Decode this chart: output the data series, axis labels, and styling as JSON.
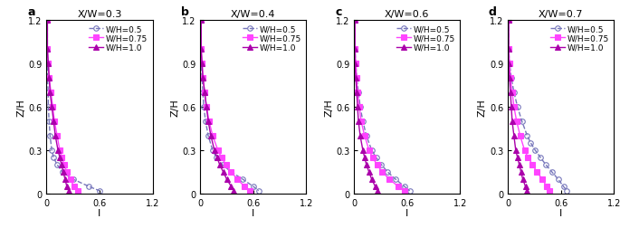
{
  "panels": [
    {
      "label": "a",
      "title": "X/W=0.3",
      "series": [
        {
          "name": "W/H=0.5",
          "color": "#7777bb",
          "marker": "o",
          "markersize": 4,
          "linestyle": "--",
          "fillstyle": "none",
          "z": [
            1.2,
            1.0,
            0.9,
            0.8,
            0.7,
            0.6,
            0.5,
            0.4,
            0.3,
            0.25,
            0.2,
            0.15,
            0.1,
            0.05,
            0.02
          ],
          "I": [
            0.01,
            0.01,
            0.01,
            0.01,
            0.02,
            0.02,
            0.03,
            0.04,
            0.06,
            0.08,
            0.12,
            0.18,
            0.3,
            0.48,
            0.6
          ]
        },
        {
          "name": "W/H=0.75",
          "color": "#ff44ff",
          "marker": "s",
          "markersize": 4,
          "linestyle": "-",
          "fillstyle": "full",
          "z": [
            1.2,
            1.0,
            0.9,
            0.8,
            0.7,
            0.6,
            0.5,
            0.4,
            0.3,
            0.25,
            0.2,
            0.15,
            0.1,
            0.05,
            0.02
          ],
          "I": [
            0.01,
            0.01,
            0.02,
            0.03,
            0.05,
            0.07,
            0.09,
            0.12,
            0.15,
            0.17,
            0.2,
            0.23,
            0.27,
            0.31,
            0.35
          ]
        },
        {
          "name": "W/H=1.0",
          "color": "#aa00aa",
          "marker": "^",
          "markersize": 4,
          "linestyle": "-",
          "fillstyle": "full",
          "z": [
            1.2,
            1.0,
            0.9,
            0.8,
            0.7,
            0.6,
            0.5,
            0.4,
            0.3,
            0.25,
            0.2,
            0.15,
            0.1,
            0.05,
            0.02
          ],
          "I": [
            0.01,
            0.01,
            0.02,
            0.03,
            0.04,
            0.06,
            0.08,
            0.1,
            0.13,
            0.15,
            0.17,
            0.19,
            0.21,
            0.23,
            0.25
          ]
        }
      ]
    },
    {
      "label": "b",
      "title": "X/W=0.4",
      "series": [
        {
          "name": "W/H=0.5",
          "color": "#7777bb",
          "marker": "o",
          "markersize": 4,
          "linestyle": "--",
          "fillstyle": "none",
          "z": [
            1.2,
            1.0,
            0.9,
            0.8,
            0.7,
            0.6,
            0.5,
            0.4,
            0.3,
            0.25,
            0.2,
            0.15,
            0.1,
            0.05,
            0.02
          ],
          "I": [
            0.01,
            0.01,
            0.01,
            0.02,
            0.03,
            0.04,
            0.06,
            0.09,
            0.14,
            0.18,
            0.25,
            0.35,
            0.48,
            0.6,
            0.66
          ]
        },
        {
          "name": "W/H=0.75",
          "color": "#ff44ff",
          "marker": "s",
          "markersize": 4,
          "linestyle": "-",
          "fillstyle": "full",
          "z": [
            1.2,
            1.0,
            0.9,
            0.8,
            0.7,
            0.6,
            0.5,
            0.4,
            0.3,
            0.25,
            0.2,
            0.15,
            0.1,
            0.05,
            0.02
          ],
          "I": [
            0.01,
            0.01,
            0.02,
            0.03,
            0.05,
            0.07,
            0.1,
            0.14,
            0.2,
            0.24,
            0.29,
            0.35,
            0.42,
            0.5,
            0.56
          ]
        },
        {
          "name": "W/H=1.0",
          "color": "#aa00aa",
          "marker": "^",
          "markersize": 4,
          "linestyle": "-",
          "fillstyle": "full",
          "z": [
            1.2,
            1.0,
            0.9,
            0.8,
            0.7,
            0.6,
            0.5,
            0.4,
            0.3,
            0.25,
            0.2,
            0.15,
            0.1,
            0.05,
            0.02
          ],
          "I": [
            0.01,
            0.01,
            0.02,
            0.03,
            0.05,
            0.07,
            0.09,
            0.12,
            0.16,
            0.19,
            0.22,
            0.26,
            0.3,
            0.35,
            0.38
          ]
        }
      ]
    },
    {
      "label": "c",
      "title": "X/W=0.6",
      "series": [
        {
          "name": "W/H=0.5",
          "color": "#7777bb",
          "marker": "o",
          "markersize": 4,
          "linestyle": "--",
          "fillstyle": "none",
          "z": [
            1.2,
            1.0,
            0.9,
            0.8,
            0.7,
            0.6,
            0.5,
            0.4,
            0.3,
            0.25,
            0.2,
            0.15,
            0.1,
            0.05,
            0.02
          ],
          "I": [
            0.01,
            0.01,
            0.02,
            0.03,
            0.05,
            0.07,
            0.1,
            0.14,
            0.2,
            0.25,
            0.31,
            0.38,
            0.47,
            0.57,
            0.63
          ]
        },
        {
          "name": "W/H=0.75",
          "color": "#ff44ff",
          "marker": "s",
          "markersize": 4,
          "linestyle": "-",
          "fillstyle": "full",
          "z": [
            1.2,
            1.0,
            0.9,
            0.8,
            0.7,
            0.6,
            0.5,
            0.4,
            0.3,
            0.25,
            0.2,
            0.15,
            0.1,
            0.05,
            0.02
          ],
          "I": [
            0.01,
            0.01,
            0.02,
            0.03,
            0.04,
            0.06,
            0.08,
            0.12,
            0.17,
            0.21,
            0.26,
            0.32,
            0.4,
            0.5,
            0.57
          ]
        },
        {
          "name": "W/H=1.0",
          "color": "#aa00aa",
          "marker": "^",
          "markersize": 4,
          "linestyle": "-",
          "fillstyle": "full",
          "z": [
            1.2,
            1.0,
            0.9,
            0.8,
            0.7,
            0.6,
            0.5,
            0.4,
            0.3,
            0.25,
            0.2,
            0.15,
            0.1,
            0.05,
            0.02
          ],
          "I": [
            0.01,
            0.01,
            0.01,
            0.02,
            0.03,
            0.04,
            0.05,
            0.07,
            0.1,
            0.12,
            0.14,
            0.17,
            0.2,
            0.24,
            0.27
          ]
        }
      ]
    },
    {
      "label": "d",
      "title": "X/W=0.7",
      "series": [
        {
          "name": "W/H=0.5",
          "color": "#7777bb",
          "marker": "o",
          "markersize": 4,
          "linestyle": "--",
          "fillstyle": "none",
          "z": [
            1.2,
            1.0,
            0.9,
            0.8,
            0.7,
            0.6,
            0.5,
            0.4,
            0.35,
            0.3,
            0.25,
            0.2,
            0.15,
            0.1,
            0.05,
            0.02
          ],
          "I": [
            0.01,
            0.01,
            0.02,
            0.04,
            0.07,
            0.11,
            0.16,
            0.22,
            0.26,
            0.31,
            0.37,
            0.43,
            0.5,
            0.57,
            0.63,
            0.67
          ]
        },
        {
          "name": "W/H=0.75",
          "color": "#ff44ff",
          "marker": "s",
          "markersize": 4,
          "linestyle": "-",
          "fillstyle": "full",
          "z": [
            1.2,
            1.0,
            0.9,
            0.8,
            0.7,
            0.6,
            0.5,
            0.4,
            0.3,
            0.25,
            0.2,
            0.15,
            0.1,
            0.05,
            0.02
          ],
          "I": [
            0.01,
            0.01,
            0.02,
            0.03,
            0.05,
            0.07,
            0.1,
            0.14,
            0.19,
            0.23,
            0.28,
            0.33,
            0.39,
            0.44,
            0.47
          ]
        },
        {
          "name": "W/H=1.0",
          "color": "#aa00aa",
          "marker": "^",
          "markersize": 4,
          "linestyle": "-",
          "fillstyle": "full",
          "z": [
            1.2,
            1.0,
            0.9,
            0.8,
            0.7,
            0.6,
            0.5,
            0.4,
            0.3,
            0.25,
            0.2,
            0.15,
            0.1,
            0.05,
            0.02
          ],
          "I": [
            0.01,
            0.01,
            0.01,
            0.02,
            0.03,
            0.04,
            0.05,
            0.07,
            0.09,
            0.11,
            0.13,
            0.15,
            0.17,
            0.2,
            0.22
          ]
        }
      ]
    }
  ],
  "xlabel": "I",
  "ylabel": "Z/H",
  "xlim": [
    0,
    1.2
  ],
  "ylim": [
    0,
    1.2
  ],
  "xticks": [
    0,
    0.6,
    1.2
  ],
  "xticklabels": [
    "0",
    "0.6",
    "1.2"
  ],
  "yticks": [
    0,
    0.3,
    0.6,
    0.9,
    1.2
  ],
  "yticklabels": [
    "0",
    "0.3",
    "0.6",
    "0.9",
    "1.2"
  ],
  "legend_fontsize": 6.5,
  "tick_fontsize": 7,
  "title_fontsize": 8,
  "label_fontsize": 8
}
